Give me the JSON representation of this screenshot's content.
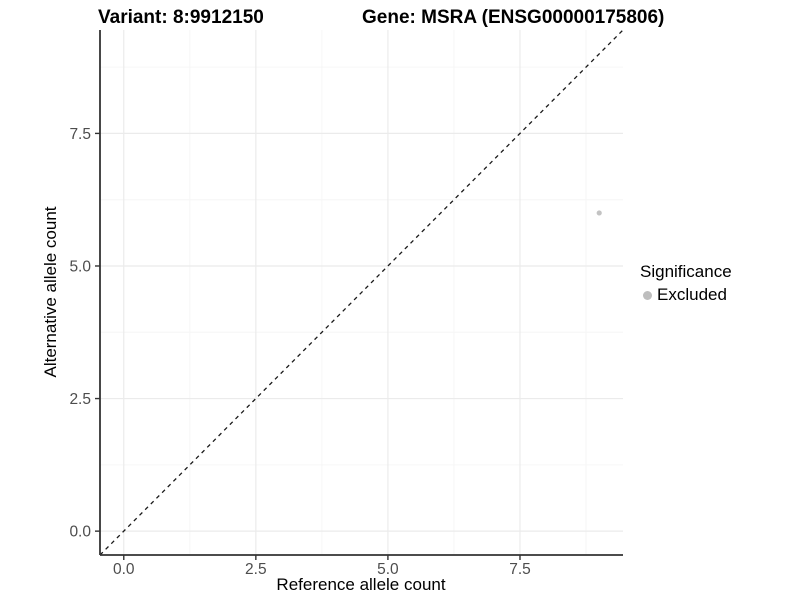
{
  "header": {
    "variant_title": "Variant: 8:9912150",
    "gene_title": "Gene: MSRA (ENSG00000175806)"
  },
  "axes": {
    "x_label": "Reference allele count",
    "y_label": "Alternative allele count"
  },
  "legend": {
    "title": "Significance",
    "items": [
      {
        "label": "Excluded",
        "color": "#bebebe"
      }
    ]
  },
  "colors": {
    "background": "#ffffff",
    "axis_line": "#333333",
    "tick_mark": "#333333",
    "tick_label": "#4d4d4d",
    "grid_major": "#ebebeb",
    "grid_minor": "#f6f6f6",
    "reference_line": "#1a1a1a",
    "point": "#c3c3c3"
  },
  "chart_data": {
    "type": "scatter",
    "title": "Variant: 8:9912150 / Gene: MSRA (ENSG00000175806)",
    "xlabel": "Reference allele count",
    "ylabel": "Alternative allele count",
    "xlim": [
      -0.45,
      9.45
    ],
    "ylim": [
      -0.45,
      9.45
    ],
    "x_ticks": [
      0,
      2.5,
      5,
      7.5
    ],
    "y_ticks": [
      0,
      2.5,
      5,
      7.5
    ],
    "x_tick_labels": [
      "0.0",
      "2.5",
      "5.0",
      "7.5"
    ],
    "y_tick_labels": [
      "0.0",
      "2.5",
      "5.0",
      "7.5"
    ],
    "x_minor_ticks": [
      1.25,
      3.75,
      6.25,
      8.75
    ],
    "y_minor_ticks": [
      1.25,
      3.75,
      6.25,
      8.75
    ],
    "grid": "major+minor",
    "legend_position": "right",
    "series": [
      {
        "name": "Excluded",
        "color": "#c3c3c3",
        "points": [
          {
            "x": 9,
            "y": 6
          }
        ]
      }
    ],
    "reference_line": {
      "slope": 1,
      "intercept": 0,
      "style": "dashed",
      "color": "#1a1a1a"
    }
  }
}
